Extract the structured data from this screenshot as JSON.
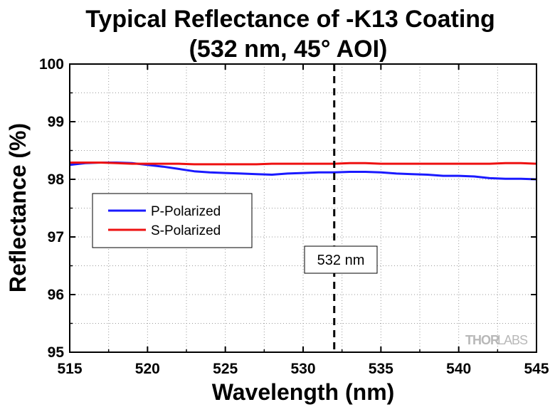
{
  "chart_data": {
    "type": "line",
    "title": "Typical Reflectance of -K13 Coating",
    "subtitle": "(532 nm, 45° AOI)",
    "xlabel": "Wavelength (nm)",
    "ylabel": "Reflectance (%)",
    "xlim": [
      515,
      545
    ],
    "ylim": [
      95,
      100
    ],
    "xticks": [
      515,
      520,
      525,
      530,
      535,
      540,
      545
    ],
    "yticks": [
      95,
      96,
      97,
      98,
      99,
      100
    ],
    "grid": true,
    "legend_position": "left-middle",
    "series": [
      {
        "name": "P-Polarized",
        "color": "#1a1aff",
        "x": [
          515,
          516,
          517,
          518,
          519,
          520,
          521,
          522,
          523,
          524,
          525,
          526,
          527,
          528,
          529,
          530,
          531,
          532,
          533,
          534,
          535,
          536,
          537,
          538,
          539,
          540,
          541,
          542,
          543,
          544,
          545
        ],
        "y": [
          98.25,
          98.28,
          98.29,
          98.29,
          98.28,
          98.25,
          98.22,
          98.18,
          98.14,
          98.12,
          98.11,
          98.1,
          98.09,
          98.08,
          98.1,
          98.11,
          98.12,
          98.12,
          98.13,
          98.13,
          98.12,
          98.1,
          98.09,
          98.08,
          98.06,
          98.06,
          98.05,
          98.02,
          98.01,
          98.01,
          98.0
        ]
      },
      {
        "name": "S-Polarized",
        "color": "#ee1111",
        "x": [
          515,
          516,
          517,
          518,
          519,
          520,
          521,
          522,
          523,
          524,
          525,
          526,
          527,
          528,
          529,
          530,
          531,
          532,
          533,
          534,
          535,
          536,
          537,
          538,
          539,
          540,
          541,
          542,
          543,
          544,
          545
        ],
        "y": [
          98.29,
          98.29,
          98.29,
          98.28,
          98.27,
          98.27,
          98.27,
          98.27,
          98.26,
          98.26,
          98.26,
          98.26,
          98.26,
          98.27,
          98.27,
          98.27,
          98.27,
          98.27,
          98.28,
          98.28,
          98.27,
          98.27,
          98.27,
          98.27,
          98.27,
          98.27,
          98.27,
          98.27,
          98.28,
          98.28,
          98.27
        ]
      }
    ],
    "annotations": [
      {
        "type": "vline",
        "x": 532,
        "style": "dashed",
        "color": "#000000",
        "label": "532 nm"
      }
    ]
  },
  "logo": {
    "text_a": "THOR",
    "text_b": "LABS"
  }
}
